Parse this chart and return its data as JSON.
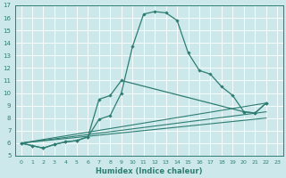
{
  "xlabel": "Humidex (Indice chaleur)",
  "bg_color": "#cce8ea",
  "grid_color": "#ffffff",
  "line_color": "#2e7d72",
  "xlim": [
    -0.5,
    23.5
  ],
  "ylim": [
    5,
    17
  ],
  "xticks": [
    0,
    1,
    2,
    3,
    4,
    5,
    6,
    7,
    8,
    9,
    10,
    11,
    12,
    13,
    14,
    15,
    16,
    17,
    18,
    19,
    20,
    21,
    22,
    23
  ],
  "yticks": [
    5,
    6,
    7,
    8,
    9,
    10,
    11,
    12,
    13,
    14,
    15,
    16,
    17
  ],
  "line1_x": [
    0,
    1,
    2,
    3,
    4,
    5,
    6,
    7,
    8,
    9,
    10,
    11,
    12,
    13,
    14,
    15,
    16,
    17,
    18,
    19,
    20,
    21,
    22
  ],
  "line1_y": [
    6.0,
    5.8,
    5.6,
    5.9,
    6.1,
    6.2,
    6.5,
    7.9,
    8.2,
    10.0,
    13.7,
    16.3,
    16.5,
    16.4,
    15.8,
    13.2,
    11.8,
    11.5,
    10.5,
    9.8,
    8.5,
    8.4,
    9.2
  ],
  "line2_x": [
    0,
    1,
    2,
    3,
    4,
    5,
    6,
    7,
    8,
    9,
    20,
    21,
    22
  ],
  "line2_y": [
    6.0,
    5.8,
    5.6,
    5.9,
    6.1,
    6.2,
    6.5,
    9.5,
    9.8,
    11.0,
    8.5,
    8.4,
    9.2
  ],
  "line3_x": [
    0,
    22
  ],
  "line3_y": [
    6.0,
    9.2
  ],
  "line4_x": [
    0,
    22
  ],
  "line4_y": [
    6.0,
    8.5
  ],
  "line5_x": [
    0,
    22
  ],
  "line5_y": [
    6.0,
    8.0
  ]
}
